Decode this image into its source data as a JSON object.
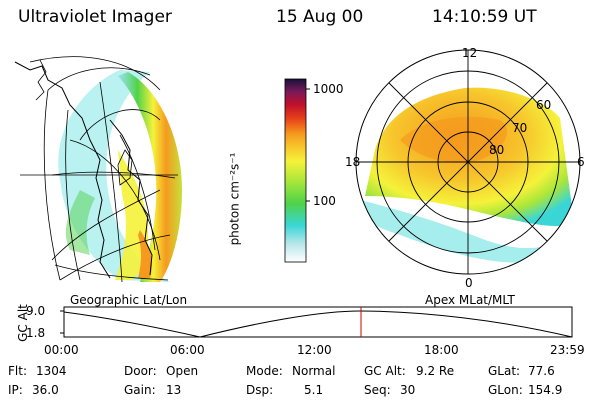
{
  "header": {
    "title": "Ultraviolet Imager",
    "date": "15 Aug 00",
    "time": "14:10:59 UT"
  },
  "colorbar": {
    "label": "photon cm⁻²s⁻¹",
    "ticks": [
      "1000",
      "100"
    ]
  },
  "geo_panel": {
    "label": "Geographic Lat/Lon"
  },
  "polar_panel": {
    "label": "Apex MLat/MLT",
    "mlt_labels": {
      "top": "12",
      "left": "18",
      "right": "6",
      "bottom": "0"
    },
    "lat_labels": [
      "60",
      "70",
      "80"
    ]
  },
  "timeline": {
    "ylabel": "GC Alt",
    "yticks": [
      "9.0",
      "1.8"
    ],
    "xticks": [
      "00:00",
      "06:00",
      "12:00",
      "18:00",
      "23:59"
    ]
  },
  "info": {
    "row1": [
      {
        "key": "Flt:",
        "val": "1304"
      },
      {
        "key": "Door:",
        "val": "Open"
      },
      {
        "key": "Mode:",
        "val": "Normal"
      },
      {
        "key": "GC Alt:",
        "val": "9.2 Re"
      },
      {
        "key": "GLat:",
        "val": "77.6"
      }
    ],
    "row2": [
      {
        "key": "IP:",
        "val": "36.0"
      },
      {
        "key": "Gain:",
        "val": "13"
      },
      {
        "key": "Dsp:",
        "val": "5.1"
      },
      {
        "key": "Seq:",
        "val": "30"
      },
      {
        "key": "GLon:",
        "val": "154.9"
      }
    ]
  }
}
